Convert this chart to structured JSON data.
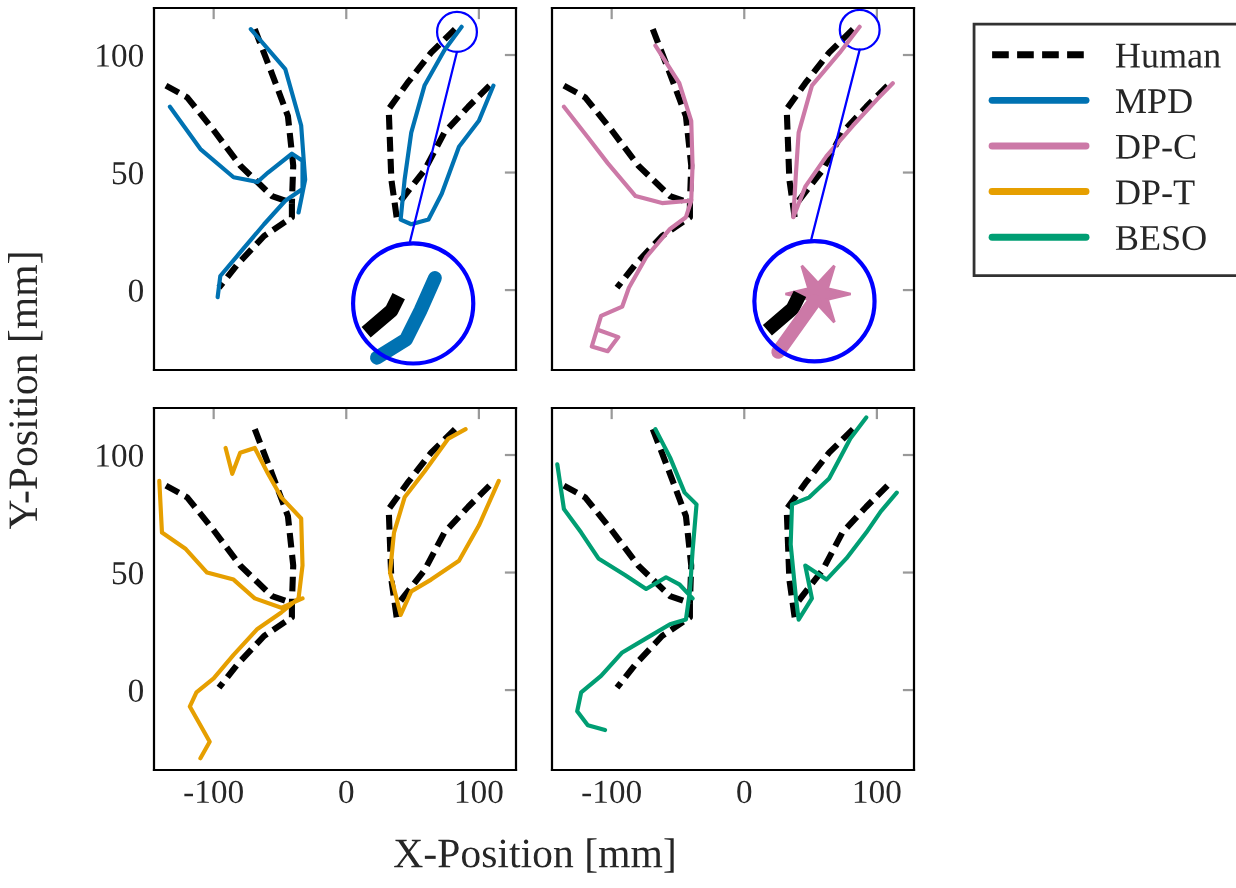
{
  "chart_data": [
    {
      "type": "line",
      "ylabel": "Y-Position [mm]",
      "xlim": [
        -145,
        128
      ],
      "ylim": [
        -34,
        120
      ],
      "xticks": [
        -100,
        0,
        100
      ],
      "yticks": [
        0,
        50,
        100
      ],
      "tick_labels": "y",
      "grid": false,
      "legend": "right",
      "series": [
        {
          "name": "Human",
          "color": "#000000",
          "line_style": "dashed",
          "x": [
            -136,
            -120,
            -100,
            -80,
            -56,
            -41,
            -41,
            -62,
            -82,
            -96,
            null,
            -69,
            -56,
            -44,
            -40,
            -41,
            null,
            38,
            34,
            32,
            46,
            64,
            82,
            null,
            41,
            59,
            74,
            92,
            108
          ],
          "values": [
            87,
            82,
            68,
            53,
            40,
            37,
            31,
            23,
            11,
            1,
            null,
            111,
            92,
            74,
            53,
            37,
            null,
            31,
            47,
            77,
            88,
            101,
            111,
            null,
            38,
            51,
            67,
            78,
            87
          ]
        },
        {
          "name": "MPD",
          "color": "#0072b2",
          "line_style": "solid",
          "x": [
            -97,
            -95,
            -80,
            -62,
            -46,
            -33,
            -33,
            -41,
            -59,
            -67,
            -85,
            -110,
            -133,
            null,
            -72,
            -46,
            -34,
            -31,
            -36,
            null,
            87,
            74,
            59,
            49,
            44,
            41,
            49,
            62,
            72,
            85,
            100,
            111
          ],
          "values": [
            -3,
            6,
            16,
            28,
            38,
            43,
            55,
            58,
            50,
            46,
            48,
            60,
            78,
            null,
            111,
            94,
            70,
            47,
            33,
            null,
            112,
            102,
            87,
            67,
            47,
            30,
            28,
            30,
            41,
            61,
            72,
            87
          ]
        }
      ]
    },
    {
      "type": "line",
      "xlim": [
        -145,
        128
      ],
      "ylim": [
        -34,
        120
      ],
      "xticks": [
        -100,
        0,
        100
      ],
      "yticks": [
        0,
        50,
        100
      ],
      "tick_labels": false,
      "grid": false,
      "series": [
        {
          "color": "#000000",
          "line_style": "dashed",
          "x": [
            -136,
            -120,
            -100,
            -80,
            -56,
            -41,
            -41,
            -62,
            -82,
            -96,
            null,
            -69,
            -56,
            -44,
            -40,
            -41,
            null,
            38,
            34,
            32,
            46,
            64,
            82,
            null,
            41,
            59,
            74,
            92,
            108
          ],
          "values": [
            87,
            82,
            68,
            53,
            40,
            37,
            31,
            23,
            11,
            1,
            null,
            111,
            92,
            74,
            53,
            37,
            null,
            31,
            47,
            77,
            88,
            101,
            111,
            null,
            38,
            51,
            67,
            78,
            87
          ]
        },
        {
          "name": "DP-C",
          "color": "#cc79a7",
          "line_style": "solid",
          "x": [
            -67,
            -49,
            -40,
            -39,
            -40,
            -44,
            -56,
            -74,
            -87,
            -92,
            -108,
            -115,
            -103,
            -95,
            -110,
            null,
            -136,
            -118,
            -103,
            -82,
            -62,
            -41,
            null,
            87,
            72,
            51,
            41,
            39,
            37,
            46,
            62,
            82,
            100,
            112
          ],
          "values": [
            104,
            88,
            72,
            53,
            38,
            31,
            26,
            14,
            1,
            -7,
            -11,
            -24,
            -26,
            -20,
            -17,
            null,
            78,
            65,
            54,
            40,
            37,
            38,
            null,
            112,
            101,
            87,
            67,
            50,
            31,
            44,
            57,
            70,
            81,
            88
          ]
        }
      ]
    },
    {
      "type": "line",
      "xlabel": "X-Position [mm]",
      "xlim": [
        -145,
        128
      ],
      "ylim": [
        -34,
        120
      ],
      "xticks": [
        -100,
        0,
        100
      ],
      "yticks": [
        0,
        50,
        100
      ],
      "grid": false,
      "series": [
        {
          "color": "#000000",
          "line_style": "dashed",
          "x": [
            -136,
            -120,
            -100,
            -80,
            -56,
            -41,
            -41,
            -62,
            -82,
            -96,
            null,
            -69,
            -56,
            -44,
            -40,
            -41,
            null,
            38,
            34,
            32,
            46,
            64,
            82,
            null,
            41,
            59,
            74,
            92,
            108
          ],
          "values": [
            87,
            82,
            68,
            53,
            40,
            37,
            31,
            23,
            11,
            1,
            null,
            111,
            92,
            74,
            53,
            37,
            null,
            31,
            47,
            77,
            88,
            101,
            111,
            null,
            38,
            51,
            67,
            78,
            87
          ]
        },
        {
          "name": "DP-T",
          "color": "#e69f00",
          "line_style": "solid",
          "x": [
            -110,
            -103,
            -110,
            -118,
            -113,
            -100,
            -85,
            -67,
            -49,
            -36,
            -33,
            -34,
            -49,
            -59,
            -69,
            -80,
            -86,
            -91,
            null,
            -141,
            -139,
            -121,
            -105,
            -85,
            -69,
            -49,
            -33,
            null,
            90,
            77,
            59,
            44,
            36,
            33,
            41,
            49,
            64,
            85,
            100,
            115
          ],
          "values": [
            -29,
            -22,
            -15,
            -7,
            -1,
            5,
            15,
            26,
            33,
            39,
            53,
            73,
            82,
            92,
            103,
            101,
            92,
            103,
            null,
            89,
            67,
            60,
            50,
            47,
            39,
            35,
            39,
            null,
            111,
            107,
            93,
            82,
            67,
            50,
            32,
            42,
            47,
            55,
            70,
            89
          ]
        }
      ]
    },
    {
      "type": "line",
      "xlim": [
        -145,
        128
      ],
      "ylim": [
        -34,
        120
      ],
      "xticks": [
        -100,
        0,
        100
      ],
      "yticks": [
        0,
        50,
        100
      ],
      "tick_labels": "x",
      "grid": false,
      "series": [
        {
          "color": "#000000",
          "line_style": "dashed",
          "x": [
            -136,
            -120,
            -100,
            -80,
            -56,
            -41,
            -41,
            -62,
            -82,
            -96,
            null,
            -69,
            -56,
            -44,
            -40,
            -41,
            null,
            38,
            34,
            32,
            46,
            64,
            82,
            null,
            41,
            59,
            74,
            92,
            108
          ],
          "values": [
            87,
            82,
            68,
            53,
            40,
            37,
            31,
            23,
            11,
            1,
            null,
            111,
            92,
            74,
            53,
            37,
            null,
            31,
            47,
            77,
            88,
            101,
            111,
            null,
            38,
            51,
            67,
            78,
            87
          ]
        },
        {
          "name": "BESO",
          "color": "#009e73",
          "line_style": "solid",
          "x": [
            -67,
            -56,
            -45,
            -36,
            -39,
            -41,
            -44,
            -56,
            -74,
            -92,
            -108,
            -123,
            -126,
            -118,
            -105,
            null,
            -141,
            -136,
            -123,
            -110,
            -90,
            -74,
            -59,
            -49,
            -39,
            null,
            92,
            80,
            64,
            49,
            36,
            35,
            39,
            41,
            51,
            46,
            62,
            77,
            92,
            103,
            115
          ],
          "values": [
            111,
            99,
            84,
            79,
            59,
            42,
            30,
            28,
            22,
            16,
            6,
            -1,
            -9,
            -15,
            -17,
            null,
            96,
            77,
            67,
            56,
            49,
            43,
            48,
            45,
            39,
            null,
            116,
            107,
            90,
            82,
            79,
            62,
            39,
            30,
            39,
            53,
            47,
            56,
            67,
            76,
            84
          ]
        }
      ]
    }
  ]
}
